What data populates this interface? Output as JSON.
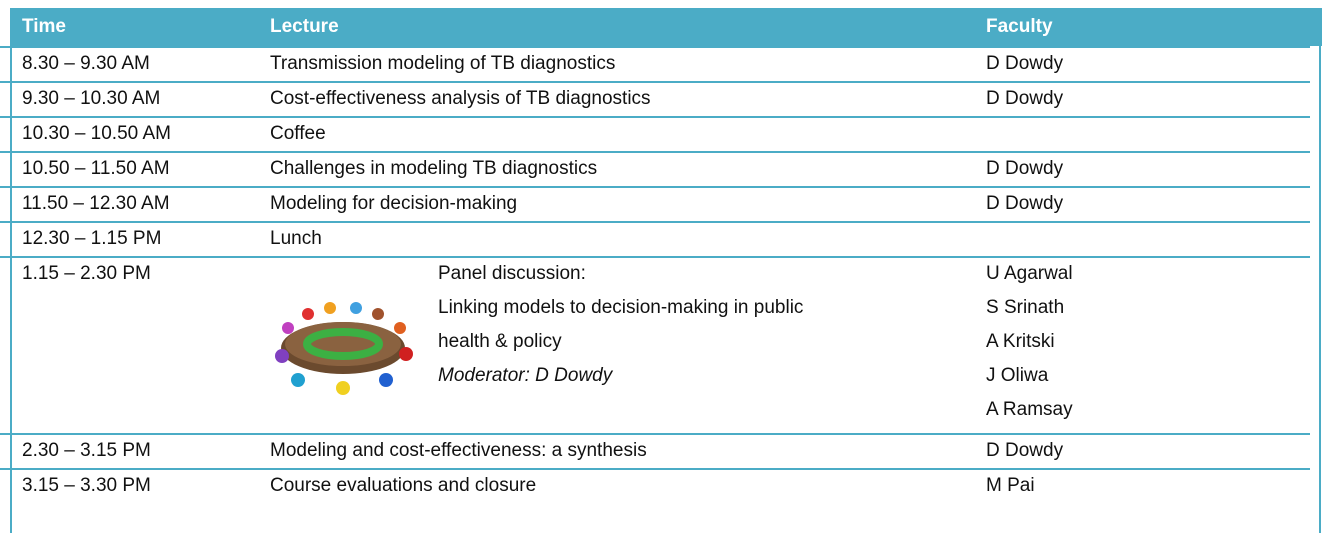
{
  "table": {
    "header": [
      "Time",
      "Lecture",
      "Faculty"
    ],
    "rows": [
      {
        "time": "8.30 – 9.30 AM",
        "lecture": [
          "Transmission modeling of TB diagnostics"
        ],
        "faculty": [
          "D Dowdy"
        ]
      },
      {
        "time": "9.30 – 10.30 AM",
        "lecture": [
          "Cost-effectiveness analysis of TB diagnostics"
        ],
        "faculty": [
          "D Dowdy"
        ]
      },
      {
        "time": "10.30 – 10.50 AM",
        "lecture": [
          "Coffee"
        ],
        "faculty": []
      },
      {
        "time": "10.50 – 11.50 AM",
        "lecture": [
          "Challenges in modeling TB diagnostics"
        ],
        "faculty": [
          "D Dowdy"
        ]
      },
      {
        "time": "11.50 – 12.30 AM",
        "lecture": [
          "Modeling for decision-making"
        ],
        "faculty": [
          "D Dowdy"
        ]
      },
      {
        "time": "12.30 – 1.15 PM",
        "lecture": [
          "Lunch"
        ],
        "faculty": []
      },
      {
        "time": "1.15 – 2.30 PM",
        "lecture": [
          "Panel discussion:",
          "Linking models to decision-making in public",
          "health & policy"
        ],
        "note": "Moderator: D Dowdy",
        "faculty": [
          "U Agarwal",
          "S Srinath",
          "A Kritski",
          "J Oliwa",
          "A Ramsay"
        ]
      },
      {
        "time": "2.30 – 3.15 PM",
        "lecture": [
          "Modeling and cost-effectiveness: a synthesis"
        ],
        "faculty": [
          "D Dowdy"
        ]
      },
      {
        "time": "3.15 – 3.30 PM",
        "lecture": [
          "Course evaluations and closure"
        ],
        "faculty": [
          "M Pai"
        ]
      }
    ]
  }
}
